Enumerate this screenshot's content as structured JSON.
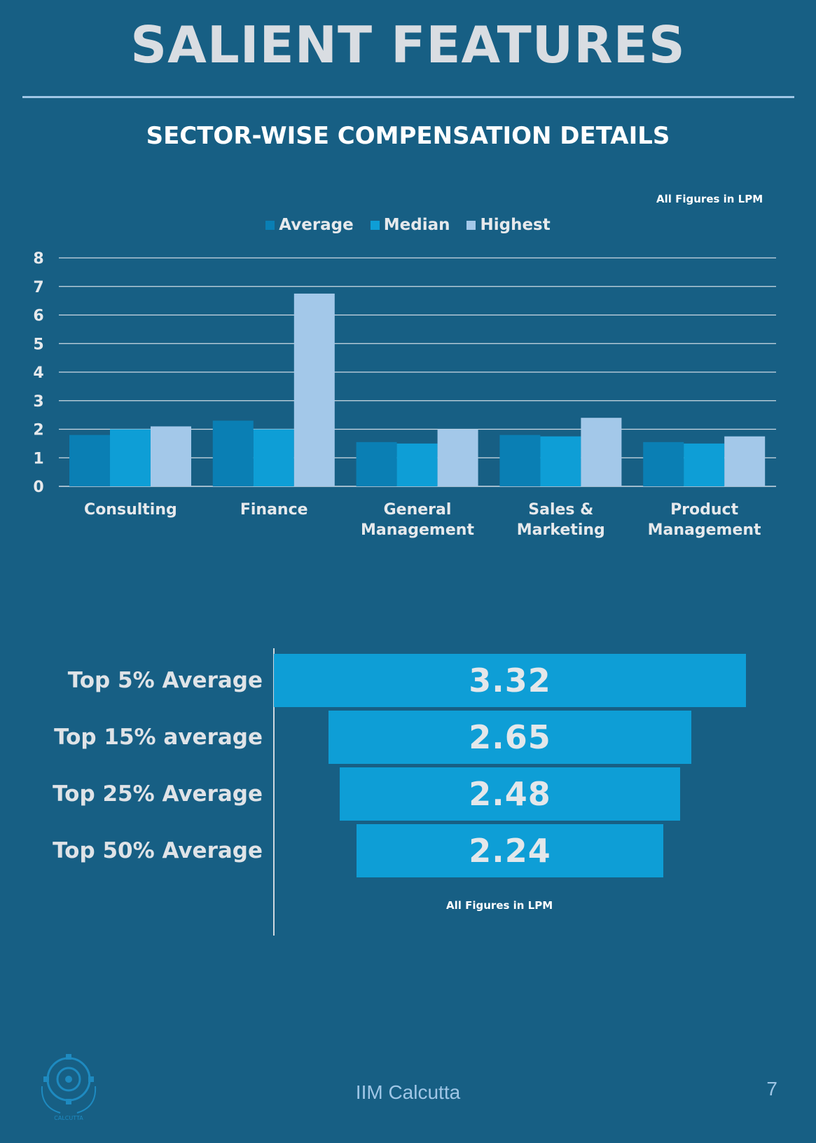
{
  "page": {
    "title": "SALIENT FEATURES",
    "subtitle": "SECTOR-WISE COMPENSATION DETAILS",
    "footer": "IIM Calcutta",
    "page_number": "7",
    "logo_text": "INDIAN INSTITUTE OF MANAGEMENT CALCUTTA"
  },
  "colors": {
    "background": "#175f84",
    "average": "#0a7fb4",
    "median": "#0e9ed6",
    "highest": "#a3c8e9",
    "funnel_bar": "#0e9ed6",
    "gridline": "#cfdbe5"
  },
  "chart_data": [
    {
      "type": "bar",
      "note": "All Figures in LPM",
      "categories": [
        "Consulting",
        "Finance",
        "General Management",
        "Sales & Marketing",
        "Product Management"
      ],
      "series": [
        {
          "name": "Average",
          "values": [
            1.8,
            2.3,
            1.55,
            1.8,
            1.55
          ]
        },
        {
          "name": "Median",
          "values": [
            2.0,
            2.0,
            1.5,
            1.75,
            1.5
          ]
        },
        {
          "name": "Highest",
          "values": [
            2.1,
            6.75,
            2.0,
            2.4,
            1.75
          ]
        }
      ],
      "ylim": [
        0,
        8
      ],
      "yticks": [
        "0",
        "1",
        "2",
        "3",
        "4",
        "5",
        "6",
        "7",
        "8"
      ],
      "grid": true,
      "legend": "top-center"
    },
    {
      "type": "bar",
      "orientation": "horizontal-funnel",
      "note": "All Figures in LPM",
      "categories": [
        "Top 5% Average",
        "Top 15% average",
        "Top 25% Average",
        "Top 50% Average"
      ],
      "values": [
        3.32,
        2.65,
        2.48,
        2.24
      ],
      "value_labels": [
        "3.32",
        "2.65",
        "2.48",
        "2.24"
      ]
    }
  ]
}
